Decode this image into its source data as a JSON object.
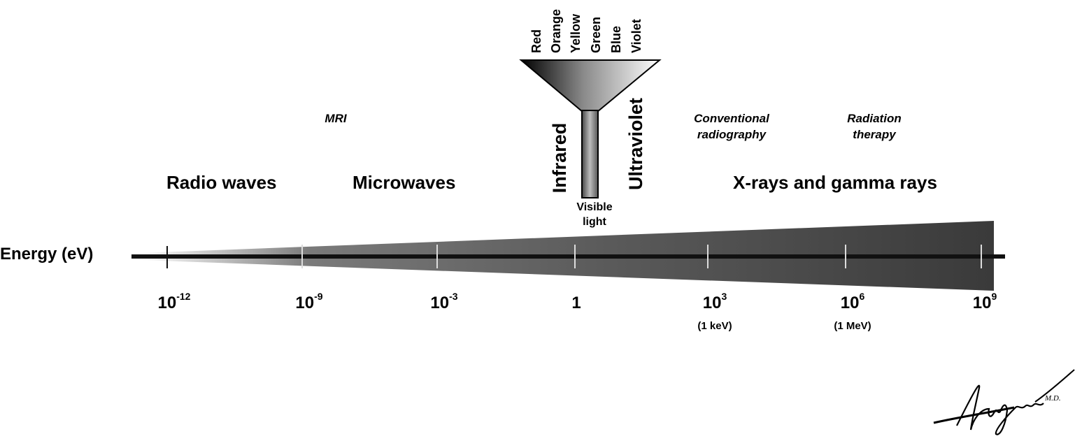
{
  "axis_label": "Energy (eV)",
  "bands": [
    {
      "id": "radio",
      "label": "Radio waves"
    },
    {
      "id": "micro",
      "label": "Microwaves"
    },
    {
      "id": "xray",
      "label": "X-rays and gamma rays"
    }
  ],
  "vertical_labels": {
    "infrared": "Infrared",
    "ultraviolet": "Ultraviolet"
  },
  "visible": {
    "line1": "Visible",
    "line2": "light"
  },
  "colors": [
    "Red",
    "Orange",
    "Yellow",
    "Green",
    "Blue",
    "Violet"
  ],
  "applications": [
    {
      "id": "mri",
      "lines": [
        "MRI"
      ]
    },
    {
      "id": "radiography",
      "lines": [
        "Conventional",
        "radiography"
      ]
    },
    {
      "id": "therapy",
      "lines": [
        "Radiation",
        "therapy"
      ]
    }
  ],
  "ticks": [
    {
      "base": "10",
      "exp": "-12",
      "note": ""
    },
    {
      "base": "10",
      "exp": "-9",
      "note": ""
    },
    {
      "base": "10",
      "exp": "-3",
      "note": ""
    },
    {
      "base": "1",
      "exp": "",
      "note": ""
    },
    {
      "base": "10",
      "exp": "3",
      "note": "(1 keV)"
    },
    {
      "base": "10",
      "exp": "6",
      "note": "(1 MeV)"
    },
    {
      "base": "10",
      "exp": "9",
      "note": ""
    }
  ],
  "signature": "Alijani M.D."
}
